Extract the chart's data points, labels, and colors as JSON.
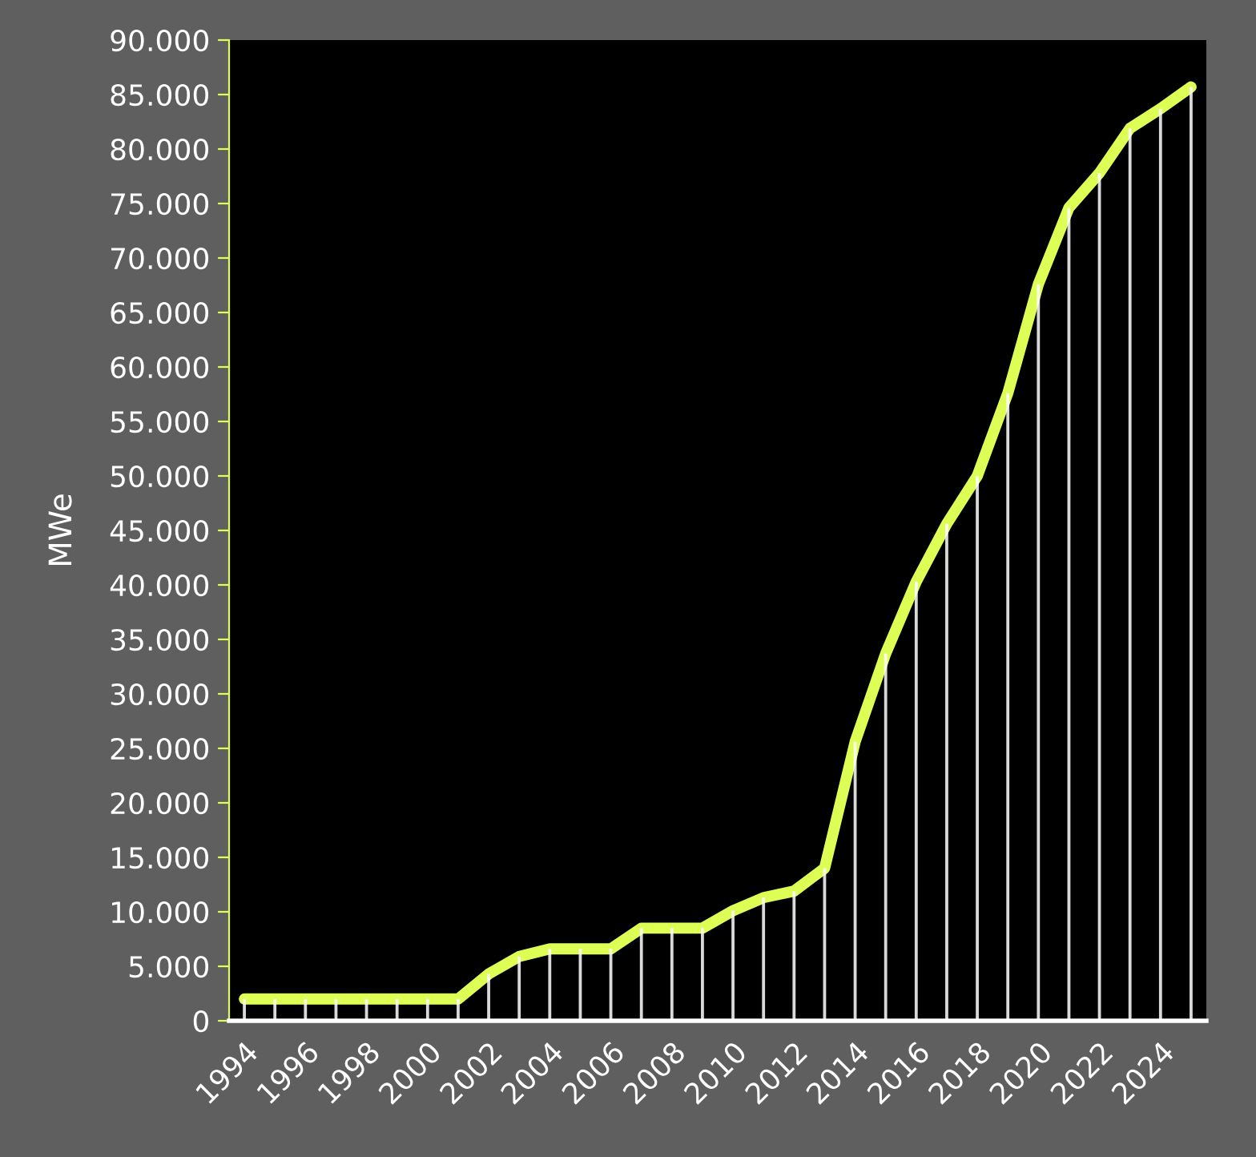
{
  "chart_data": {
    "type": "line",
    "ylabel": "MWe",
    "x": [
      1994,
      1995,
      1996,
      1997,
      1998,
      1999,
      2000,
      2001,
      2002,
      2003,
      2004,
      2005,
      2006,
      2007,
      2008,
      2009,
      2010,
      2011,
      2012,
      2013,
      2014,
      2015,
      2016,
      2017,
      2018,
      2019,
      2020,
      2021,
      2022,
      2023,
      2024,
      2025
    ],
    "series": [
      {
        "type": "bar",
        "color": "#ffffff",
        "values": [
          2000,
          2000,
          2000,
          2000,
          2000,
          2000,
          2000,
          2000,
          4300,
          5900,
          6600,
          6600,
          6600,
          8500,
          8500,
          8500,
          10100,
          11300,
          11900,
          14000,
          25600,
          33700,
          40300,
          45600,
          50000,
          57600,
          67600,
          74600,
          77800,
          81900,
          83700,
          85700
        ]
      },
      {
        "color": "#ddff55",
        "values": [
          2000,
          2000,
          2000,
          2000,
          2000,
          2000,
          2000,
          2000,
          4300,
          5900,
          6600,
          6600,
          6600,
          8500,
          8500,
          8500,
          10100,
          11300,
          11900,
          14000,
          25600,
          33700,
          40300,
          45600,
          50000,
          57600,
          67600,
          74600,
          77800,
          81900,
          83700,
          85700
        ]
      }
    ],
    "xlim": [
      1993.5,
      2025.5
    ],
    "xticks": [
      1994,
      1996,
      1998,
      2000,
      2002,
      2004,
      2006,
      2008,
      2010,
      2012,
      2014,
      2016,
      2018,
      2020,
      2022,
      2024
    ],
    "ylim": [
      0,
      90000
    ],
    "yticks": [
      0,
      {
        "value": 5000,
        "label": "5.000"
      },
      {
        "value": 10000,
        "label": "10.000"
      },
      {
        "value": 15000,
        "label": "15.000"
      },
      {
        "value": 20000,
        "label": "20.000"
      },
      {
        "value": 25000,
        "label": "25.000"
      },
      {
        "value": 30000,
        "label": "30.000"
      },
      {
        "value": 35000,
        "label": "35.000"
      },
      {
        "value": 40000,
        "label": "40.000"
      },
      {
        "value": 45000,
        "label": "45.000"
      },
      {
        "value": 50000,
        "label": "50.000"
      },
      {
        "value": 55000,
        "label": "55.000"
      },
      {
        "value": 60000,
        "label": "60.000"
      },
      {
        "value": 65000,
        "label": "65.000"
      },
      {
        "value": 70000,
        "label": "70.000"
      },
      {
        "value": 75000,
        "label": "75.000"
      },
      {
        "value": 80000,
        "label": "80.000"
      },
      {
        "value": 85000,
        "label": "85.000"
      },
      {
        "value": 90000,
        "label": "90.000"
      }
    ],
    "grid": false,
    "legend": false,
    "marker": "none",
    "line_style": "solid"
  }
}
